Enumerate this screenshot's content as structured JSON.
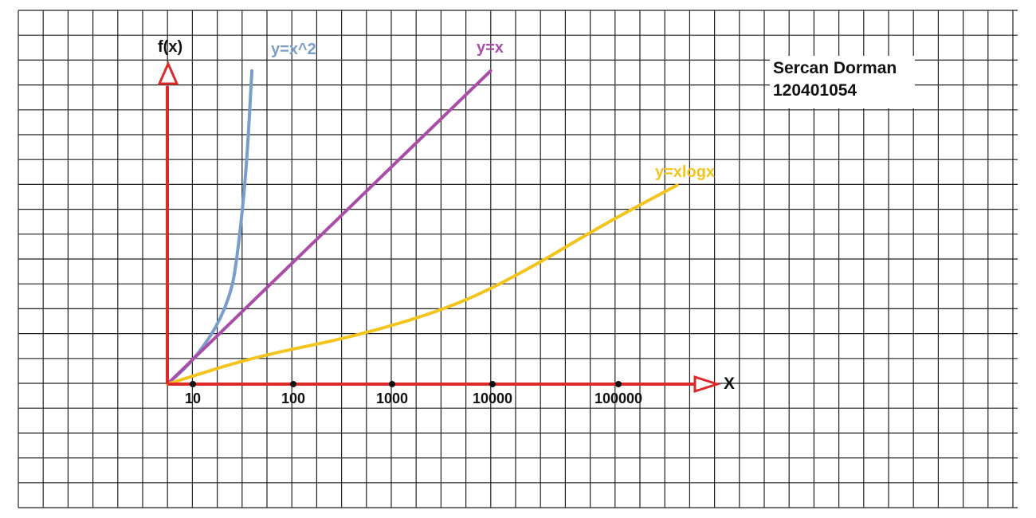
{
  "chart_data": {
    "type": "line",
    "x_axis_label": "X",
    "y_axis_label": "f(x)",
    "x_scale": "log",
    "x_ticks": [
      "10",
      "100",
      "1000",
      "10000",
      "100000"
    ],
    "series": [
      {
        "name": "y=x^2",
        "color": "#7b9dc9",
        "points": [
          [
            0.5,
            0
          ],
          [
            1.5,
            0.9
          ],
          [
            2.5,
            2.3
          ],
          [
            3.1,
            3.8
          ],
          [
            3.3,
            5.1
          ],
          [
            3.5,
            6.8
          ],
          [
            3.7,
            9.0
          ],
          [
            3.9,
            12.6
          ]
        ]
      },
      {
        "name": "y=x",
        "color": "#a84ea8",
        "points": [
          [
            0.5,
            0
          ],
          [
            13.5,
            12.6
          ]
        ]
      },
      {
        "name": "y=xlogx",
        "color": "#f2c41c",
        "points": [
          [
            0.5,
            0
          ],
          [
            4,
            1.1
          ],
          [
            8,
            1.9
          ],
          [
            12,
            3.1
          ],
          [
            15,
            4.6
          ],
          [
            18,
            6.4
          ],
          [
            21,
            8.0
          ]
        ]
      }
    ],
    "grid": true,
    "legend": "inline labels at curve ends"
  },
  "author": {
    "name": "Sercan Dorman",
    "id": "120401054"
  },
  "colors": {
    "axis": "#dc2a2a",
    "grid": "#222222",
    "background": "#ffffff"
  }
}
